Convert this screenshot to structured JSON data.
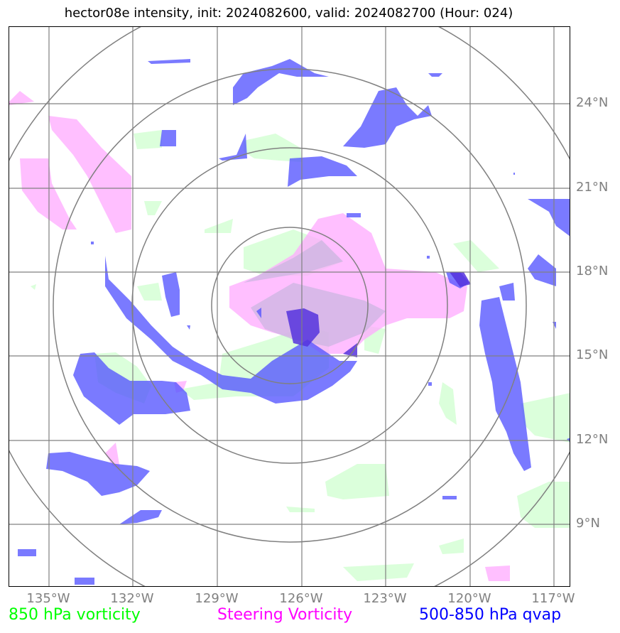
{
  "title": "hector08e intensity, init: 2024082600, valid: 2024082700 (Hour: 024)",
  "lat_labels": [
    "24°N",
    "21°N",
    "18°N",
    "15°N",
    "12°N",
    "9°N"
  ],
  "lon_labels": [
    "135°W",
    "132°W",
    "129°W",
    "126°W",
    "123°W",
    "120°W",
    "117°W"
  ],
  "legend": {
    "vorticity_850": "850 hPa vorticity",
    "steering_vorticity": "Steering Vorticity",
    "qvap_500_850": "500-850 hPa qvap"
  },
  "colors": {
    "vorticity_850": "#00ff00",
    "steering_vorticity": "#ff00ff",
    "qvap_500_850": "#0000ff",
    "grid": "#808080"
  },
  "map": {
    "lon_range": [
      "136.4°W",
      "116.4°W"
    ],
    "lat_range": [
      "7.3°N",
      "27.3°N"
    ],
    "range_rings_count": 4,
    "storm_center": {
      "lat": "16.9°N",
      "lon": "126.4°W"
    }
  }
}
